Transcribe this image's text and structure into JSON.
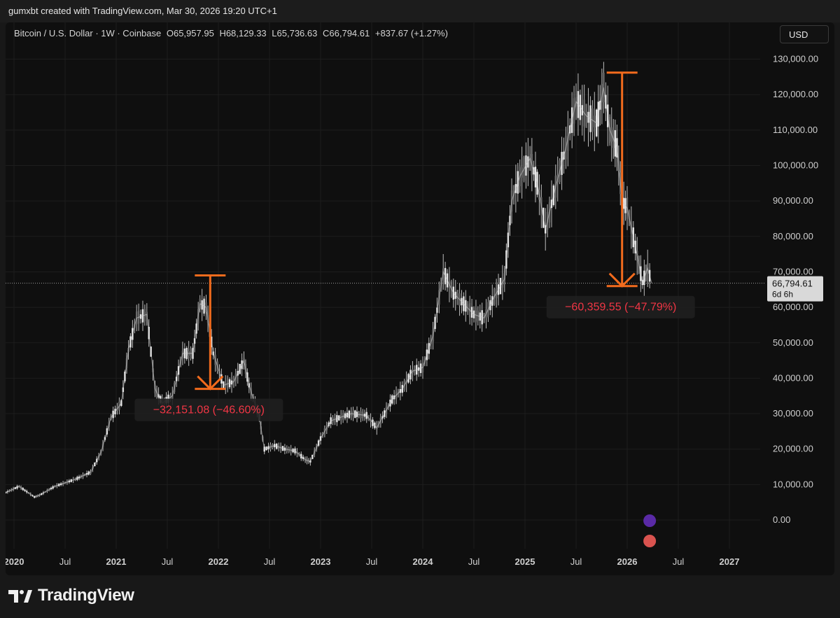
{
  "header": {
    "text": "gumxbt created with TradingView.com, Mar 30, 2026 19:20 UTC+1"
  },
  "legend": {
    "symbol": "Bitcoin / U.S. Dollar · 1W · Coinbase",
    "open": "O65,957.95",
    "high": "H68,129.33",
    "low": "L65,736.63",
    "close": "C66,794.61",
    "change": "+837.67 (+1.27%)"
  },
  "currency_button": {
    "label": "USD"
  },
  "price_label": {
    "price": "66,794.61",
    "countdown": "6d 6h"
  },
  "footer": {
    "brand": "TradingView"
  },
  "colors": {
    "background": "#0f0f0f",
    "candle": "#bdbdbd",
    "annotation": "#f26b1d",
    "annotation_text": "#f23645",
    "price_line": "#9e9e9e"
  },
  "chart_data": {
    "type": "line",
    "title": "",
    "xlabel": "",
    "ylabel": "",
    "ylim": [
      -5000,
      135000
    ],
    "x_ticks": [
      "2020",
      "Jul",
      "2021",
      "Jul",
      "2022",
      "Jul",
      "2023",
      "Jul",
      "2024",
      "Jul",
      "2025",
      "Jul",
      "2026",
      "Jul",
      "2027"
    ],
    "x_tick_years": [
      2020.0,
      2020.5,
      2021.0,
      2021.5,
      2022.0,
      2022.5,
      2023.0,
      2023.5,
      2024.0,
      2024.5,
      2025.0,
      2025.5,
      2026.0,
      2026.5,
      2027.0
    ],
    "y_ticks": [
      "0.00",
      "10,000.00",
      "20,000.00",
      "30,000.00",
      "40,000.00",
      "50,000.00",
      "60,000.00",
      "70,000.00",
      "80,000.00",
      "90,000.00",
      "100,000.00",
      "110,000.00",
      "120,000.00",
      "130,000.00"
    ],
    "y_tick_values": [
      0,
      10000,
      20000,
      30000,
      40000,
      50000,
      60000,
      70000,
      80000,
      90000,
      100000,
      110000,
      120000,
      130000
    ],
    "current_price": 66794.61,
    "series": [
      {
        "x": [
          2019.9,
          2020.05,
          2020.2,
          2020.25,
          2020.4,
          2020.6,
          2020.75,
          2020.85,
          2020.95,
          2021.05,
          2021.12,
          2021.2,
          2021.3,
          2021.38,
          2021.45,
          2021.55,
          2021.65,
          2021.75,
          2021.82,
          2021.88,
          2021.95,
          2022.05,
          2022.15,
          2022.25,
          2022.3,
          2022.4,
          2022.45,
          2022.55,
          2022.65,
          2022.75,
          2022.85,
          2022.9,
          2023.0,
          2023.1,
          2023.2,
          2023.3,
          2023.45,
          2023.55,
          2023.7,
          2023.8,
          2023.9,
          2024.0,
          2024.1,
          2024.2,
          2024.3,
          2024.4,
          2024.5,
          2024.6,
          2024.7,
          2024.8,
          2024.87,
          2024.95,
          2025.05,
          2025.12,
          2025.2,
          2025.3,
          2025.4,
          2025.5,
          2025.6,
          2025.7,
          2025.77,
          2025.83,
          2025.9,
          2025.95,
          2026.0,
          2026.08,
          2026.15,
          2026.2,
          2026.24
        ],
        "close": [
          7500,
          9500,
          6500,
          7000,
          9500,
          11500,
          13500,
          19000,
          29000,
          33000,
          48000,
          57000,
          58000,
          37000,
          33000,
          35000,
          47000,
          47000,
          61000,
          60000,
          47000,
          38000,
          39000,
          45000,
          38000,
          29000,
          20000,
          21000,
          20000,
          19500,
          17000,
          16500,
          23000,
          28000,
          29000,
          30000,
          29500,
          26000,
          34000,
          37000,
          42000,
          43000,
          52000,
          70000,
          64000,
          61000,
          58000,
          57000,
          63000,
          68000,
          90000,
          97000,
          102000,
          95000,
          82000,
          94000,
          105000,
          118000,
          114000,
          112000,
          122000,
          110000,
          105000,
          90000,
          88000,
          77000,
          67000,
          71000,
          66794.61
        ]
      }
    ],
    "annotations": [
      {
        "label": "−32,151.08 (−46.60%)",
        "from_x": 2021.92,
        "from_y": 69000,
        "to_y": 37000
      },
      {
        "label": "−60,359.55 (−47.79%)",
        "from_x": 2025.95,
        "from_y": 126200,
        "to_y": 66000
      }
    ]
  }
}
